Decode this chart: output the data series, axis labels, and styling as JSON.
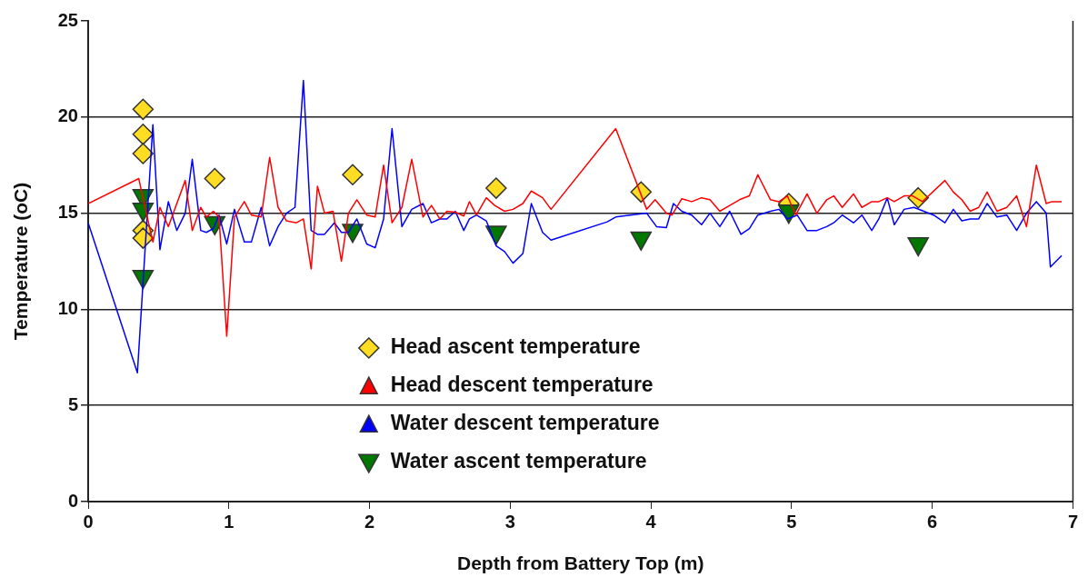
{
  "chart_data": {
    "type": "line",
    "xlabel": "Depth from Battery Top (m)",
    "ylabel": "Temperature (oC)",
    "xlim": [
      0,
      7
    ],
    "xticks": [
      0,
      1,
      2,
      3,
      4,
      5,
      6,
      7
    ],
    "ylim": [
      0,
      25
    ],
    "yticks": [
      0,
      5,
      10,
      15,
      20,
      25
    ],
    "grid": "y",
    "legend": "bottom",
    "series": [
      {
        "name": "Head ascent temperature",
        "type": "scatter",
        "marker": "diamond",
        "color": "#ffdd22",
        "x": [
          0.39,
          0.39,
          0.39,
          0.39,
          0.39,
          0.9,
          1.88,
          2.9,
          3.93,
          4.98,
          5.9
        ],
        "values": [
          20.4,
          19.1,
          18.1,
          14.1,
          13.7,
          16.8,
          17.0,
          16.3,
          16.1,
          15.5,
          15.8
        ]
      },
      {
        "name": "Head descent temperature",
        "marker": "none",
        "color": "#ff0000",
        "x": [
          0,
          0.36,
          0.38,
          0.46,
          0.51,
          0.57,
          0.69,
          0.74,
          0.8,
          0.84,
          0.89,
          0.93,
          0.985,
          1.04,
          1.11,
          1.16,
          1.23,
          1.29,
          1.35,
          1.41,
          1.48,
          1.53,
          1.585,
          1.63,
          1.68,
          1.74,
          1.8,
          1.85,
          1.91,
          1.98,
          2.04,
          2.1,
          2.16,
          2.23,
          2.3,
          2.38,
          2.44,
          2.5,
          2.55,
          2.61,
          2.67,
          2.71,
          2.76,
          2.83,
          2.89,
          2.96,
          3.02,
          3.09,
          3.15,
          3.23,
          3.29,
          3.75,
          3.97,
          4.03,
          4.11,
          4.15,
          4.22,
          4.29,
          4.36,
          4.42,
          4.49,
          4.56,
          4.63,
          4.7,
          4.76,
          4.85,
          4.91,
          4.97,
          5.03,
          5.11,
          5.18,
          5.25,
          5.3,
          5.36,
          5.44,
          5.5,
          5.57,
          5.62,
          5.68,
          5.73,
          5.8,
          5.86,
          5.93,
          6.09,
          6.15,
          6.21,
          6.27,
          6.33,
          6.39,
          6.46,
          6.53,
          6.6,
          6.67,
          6.74,
          6.81,
          6.85,
          6.92
        ],
        "values": [
          15.5,
          16.8,
          16.1,
          13.5,
          15.3,
          14.3,
          16.7,
          14.1,
          15.3,
          14.8,
          15.1,
          14.8,
          8.6,
          14.8,
          15.6,
          14.9,
          14.8,
          17.9,
          15.3,
          14.6,
          14.5,
          14.7,
          12.1,
          16.4,
          15.0,
          15.1,
          12.5,
          15.0,
          15.7,
          14.9,
          14.8,
          17.5,
          14.5,
          15.3,
          17.8,
          14.8,
          15.4,
          14.7,
          15.1,
          15.05,
          14.85,
          15.6,
          14.9,
          15.8,
          15.4,
          15.1,
          15.2,
          15.5,
          16.15,
          15.8,
          15.2,
          19.4,
          15.2,
          15.7,
          15.0,
          14.9,
          15.75,
          15.6,
          15.8,
          15.7,
          15.1,
          15.4,
          15.7,
          15.9,
          17.0,
          15.7,
          15.6,
          15.9,
          14.9,
          16.0,
          15.0,
          15.7,
          15.9,
          15.3,
          16.0,
          15.3,
          15.6,
          15.6,
          15.8,
          15.6,
          15.9,
          15.9,
          15.6,
          16.7,
          16.1,
          15.7,
          15.1,
          15.3,
          16.1,
          15.1,
          15.3,
          15.9,
          14.3,
          17.5,
          15.5,
          15.6,
          15.6
        ]
      },
      {
        "name": "Water descent temperature",
        "marker": "none",
        "color": "#0000ff",
        "x": [
          0,
          0.35,
          0.46,
          0.51,
          0.57,
          0.63,
          0.69,
          0.74,
          0.8,
          0.84,
          0.89,
          0.93,
          0.985,
          1.04,
          1.11,
          1.16,
          1.23,
          1.29,
          1.35,
          1.41,
          1.47,
          1.53,
          1.585,
          1.63,
          1.68,
          1.75,
          1.8,
          1.85,
          1.91,
          1.98,
          2.04,
          2.1,
          2.16,
          2.23,
          2.3,
          2.38,
          2.44,
          2.5,
          2.55,
          2.61,
          2.67,
          2.71,
          2.76,
          2.83,
          2.9,
          2.96,
          3.02,
          3.09,
          3.15,
          3.23,
          3.29,
          3.69,
          3.75,
          3.97,
          4.04,
          4.11,
          4.16,
          4.22,
          4.29,
          4.36,
          4.42,
          4.49,
          4.56,
          4.64,
          4.7,
          4.76,
          4.85,
          4.91,
          4.97,
          5.04,
          5.11,
          5.18,
          5.25,
          5.3,
          5.36,
          5.44,
          5.5,
          5.57,
          5.62,
          5.68,
          5.73,
          5.8,
          5.87,
          6.01,
          6.09,
          6.15,
          6.21,
          6.27,
          6.33,
          6.39,
          6.46,
          6.53,
          6.6,
          6.67,
          6.74,
          6.81,
          6.84,
          6.92
        ],
        "values": [
          14.5,
          6.7,
          19.6,
          13.1,
          15.6,
          14.1,
          15.0,
          17.8,
          14.1,
          14.0,
          14.2,
          14.9,
          13.4,
          15.2,
          13.5,
          13.5,
          15.3,
          13.3,
          14.3,
          15.0,
          15.3,
          21.9,
          14.1,
          13.9,
          13.9,
          14.5,
          14.0,
          14.0,
          14.7,
          13.4,
          13.2,
          14.7,
          19.4,
          14.3,
          15.2,
          15.5,
          14.5,
          14.7,
          14.7,
          15.1,
          14.1,
          14.7,
          14.9,
          14.6,
          13.3,
          13.0,
          12.4,
          12.9,
          15.5,
          14.0,
          13.6,
          14.55,
          14.8,
          15.0,
          14.3,
          14.25,
          15.5,
          15.1,
          14.9,
          14.4,
          15.0,
          14.3,
          15.1,
          13.9,
          14.2,
          14.9,
          15.1,
          15.2,
          14.7,
          14.9,
          14.1,
          14.1,
          14.3,
          14.5,
          14.9,
          14.5,
          14.9,
          14.1,
          14.7,
          15.8,
          14.4,
          15.2,
          15.3,
          14.9,
          14.5,
          15.2,
          14.6,
          14.7,
          14.7,
          15.5,
          14.8,
          14.9,
          14.1,
          15.0,
          15.6,
          15.0,
          12.2,
          12.8
        ]
      },
      {
        "name": "Water ascent temperature",
        "type": "scatter",
        "marker": "triangle-down",
        "color": "#007700",
        "x": [
          0.39,
          0.39,
          0.39,
          0.9,
          1.88,
          2.9,
          3.93,
          4.98,
          5.9
        ],
        "values": [
          15.8,
          15.1,
          11.6,
          14.4,
          14.0,
          13.9,
          13.6,
          15.0,
          13.3
        ]
      }
    ]
  }
}
